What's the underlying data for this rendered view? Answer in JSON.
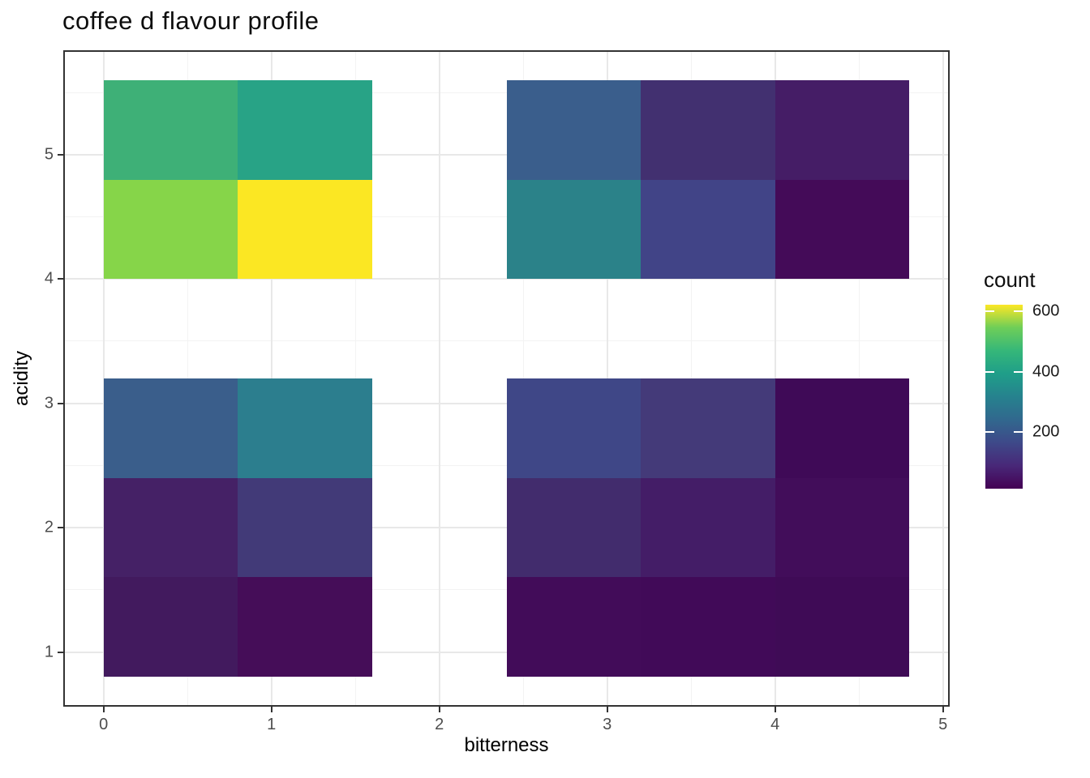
{
  "title": "coffee d flavour profile",
  "axes": {
    "x": {
      "label": "bitterness",
      "ticks": [
        "0",
        "1",
        "2",
        "3",
        "4",
        "5"
      ]
    },
    "y": {
      "label": "acidity",
      "ticks": [
        "1",
        "2",
        "3",
        "4",
        "5"
      ]
    }
  },
  "legend": {
    "title": "count",
    "ticks": [
      "600",
      "400",
      "200"
    ]
  },
  "chart_data": {
    "type": "heatmap",
    "title": "coffee d flavour profile",
    "xlabel": "bitterness",
    "ylabel": "acidity",
    "legend_label": "count",
    "xlim": [
      -0.24,
      5.04
    ],
    "ylim": [
      0.56,
      5.84
    ],
    "x_major_ticks": [
      0,
      1,
      2,
      3,
      4,
      5
    ],
    "y_major_ticks": [
      1,
      2,
      3,
      4,
      5
    ],
    "x_minor_ticks": [
      0.5,
      1.5,
      2.5,
      3.5,
      4.5
    ],
    "y_minor_ticks": [
      1.5,
      2.5,
      3.5,
      4.5,
      5.5
    ],
    "grid": true,
    "legend_position": "right",
    "bin_width": 0.8,
    "bin_height": 0.8,
    "color_scale": {
      "name": "viridis",
      "domain": [
        14,
        621
      ],
      "ticks": [
        600,
        400,
        200
      ],
      "stops": [
        "#440154",
        "#482878",
        "#3e4989",
        "#31688e",
        "#26828e",
        "#1f9e89",
        "#35b779",
        "#6ece58",
        "#fde725"
      ]
    },
    "tiles": [
      {
        "x": 0.4,
        "y": 5.2,
        "count": 470,
        "color": "#3eb077"
      },
      {
        "x": 1.2,
        "y": 5.2,
        "count": 400,
        "color": "#28a386"
      },
      {
        "x": 0.4,
        "y": 4.4,
        "count": 550,
        "color": "#86d549"
      },
      {
        "x": 1.2,
        "y": 4.4,
        "count": 620,
        "color": "#fbe723"
      },
      {
        "x": 2.8,
        "y": 5.2,
        "count": 230,
        "color": "#3a5e8c"
      },
      {
        "x": 3.6,
        "y": 5.2,
        "count": 110,
        "color": "#423070"
      },
      {
        "x": 4.4,
        "y": 5.2,
        "count": 70,
        "color": "#451d66"
      },
      {
        "x": 2.8,
        "y": 4.4,
        "count": 320,
        "color": "#2b8289"
      },
      {
        "x": 3.6,
        "y": 4.4,
        "count": 160,
        "color": "#414487"
      },
      {
        "x": 4.4,
        "y": 4.4,
        "count": 25,
        "color": "#440b58"
      },
      {
        "x": 0.4,
        "y": 2.8,
        "count": 230,
        "color": "#3a5e8b"
      },
      {
        "x": 1.2,
        "y": 2.8,
        "count": 300,
        "color": "#2c7e8e"
      },
      {
        "x": 0.4,
        "y": 2.0,
        "count": 80,
        "color": "#452166"
      },
      {
        "x": 1.2,
        "y": 2.0,
        "count": 130,
        "color": "#423a78"
      },
      {
        "x": 0.4,
        "y": 1.2,
        "count": 60,
        "color": "#421a5e"
      },
      {
        "x": 1.2,
        "y": 1.2,
        "count": 30,
        "color": "#450d58"
      },
      {
        "x": 2.8,
        "y": 2.8,
        "count": 165,
        "color": "#3f4787"
      },
      {
        "x": 3.6,
        "y": 2.8,
        "count": 125,
        "color": "#443a79"
      },
      {
        "x": 4.4,
        "y": 2.8,
        "count": 20,
        "color": "#3f0a57"
      },
      {
        "x": 2.8,
        "y": 2.0,
        "count": 100,
        "color": "#422c6d"
      },
      {
        "x": 3.6,
        "y": 2.0,
        "count": 70,
        "color": "#441d67"
      },
      {
        "x": 4.4,
        "y": 2.0,
        "count": 30,
        "color": "#420d5a"
      },
      {
        "x": 2.8,
        "y": 1.2,
        "count": 28,
        "color": "#420c59"
      },
      {
        "x": 3.6,
        "y": 1.2,
        "count": 25,
        "color": "#410a58"
      },
      {
        "x": 4.4,
        "y": 1.2,
        "count": 22,
        "color": "#3f0b56"
      }
    ]
  }
}
